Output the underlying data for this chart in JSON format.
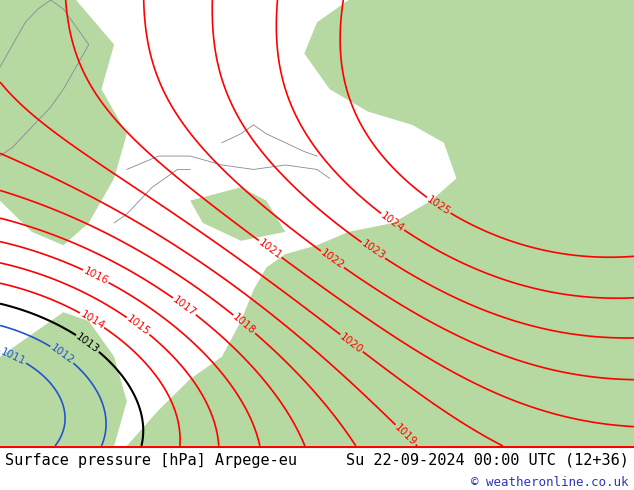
{
  "title_left": "Surface pressure [hPa] Arpege-eu",
  "title_right": "Su 22-09-2024 00:00 UTC (12+36)",
  "copyright": "© weatheronline.co.uk",
  "map_bg_land": "#b5d9a0",
  "map_bg_sea": "#d8d8e8",
  "contour_color_red": "red",
  "contour_color_black": "black",
  "contour_color_blue": "#2255cc",
  "coast_color": "#888899",
  "title_fontsize": 11,
  "copyright_color": "#3333bb",
  "figsize": [
    6.34,
    4.9
  ],
  "dpi": 100,
  "levels_red": [
    1014,
    1015,
    1016,
    1017,
    1018,
    1019,
    1020,
    1021,
    1022,
    1023,
    1024,
    1025
  ],
  "levels_black": [
    1013
  ],
  "levels_blue": [
    1011,
    1012
  ]
}
